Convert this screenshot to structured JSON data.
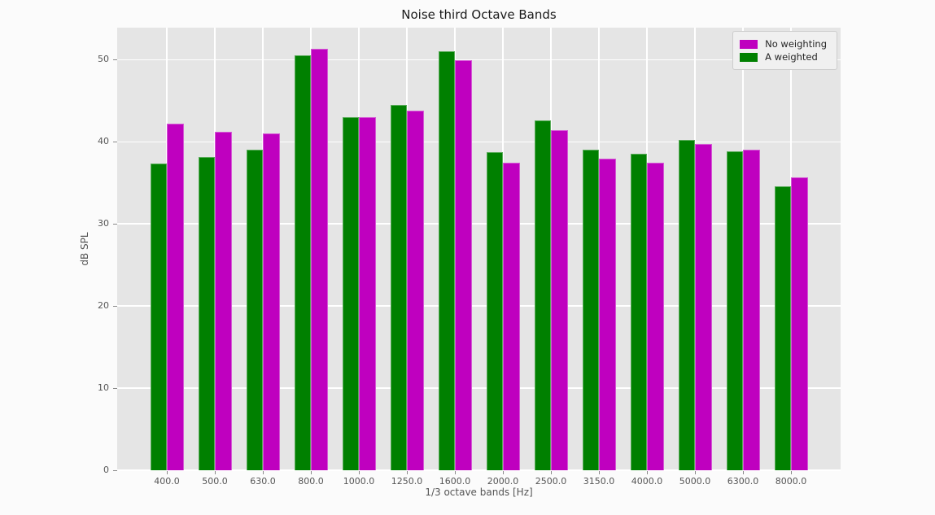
{
  "chart_data": {
    "type": "bar",
    "title": "Noise third Octave Bands",
    "xlabel": "1/3 octave bands [Hz]",
    "ylabel": "dB SPL",
    "categories": [
      "400.0",
      "500.0",
      "630.0",
      "800.0",
      "1000.0",
      "1250.0",
      "1600.0",
      "2000.0",
      "2500.0",
      "3150.0",
      "4000.0",
      "5000.0",
      "6300.0",
      "8000.0"
    ],
    "series": [
      {
        "name": "No weighting",
        "color": "#bf00bf",
        "bar_position": "right",
        "values": [
          42.2,
          41.2,
          41.0,
          51.3,
          43.0,
          43.8,
          49.9,
          37.5,
          41.4,
          37.9,
          37.5,
          39.7,
          39.0,
          35.7
        ]
      },
      {
        "name": "A weighted",
        "color": "#008000",
        "bar_position": "left",
        "values": [
          37.4,
          38.1,
          39.0,
          50.5,
          43.0,
          44.5,
          51.0,
          38.7,
          42.6,
          39.0,
          38.5,
          40.2,
          38.8,
          34.6
        ]
      }
    ],
    "ylim": [
      0,
      53.9
    ],
    "yticks": [
      0,
      10,
      20,
      30,
      40,
      50
    ],
    "grid": true,
    "legend_position": "upper right",
    "plot_bg": "#e5e5e5",
    "grid_color": "#ffffff",
    "tick_color": "#555555"
  }
}
